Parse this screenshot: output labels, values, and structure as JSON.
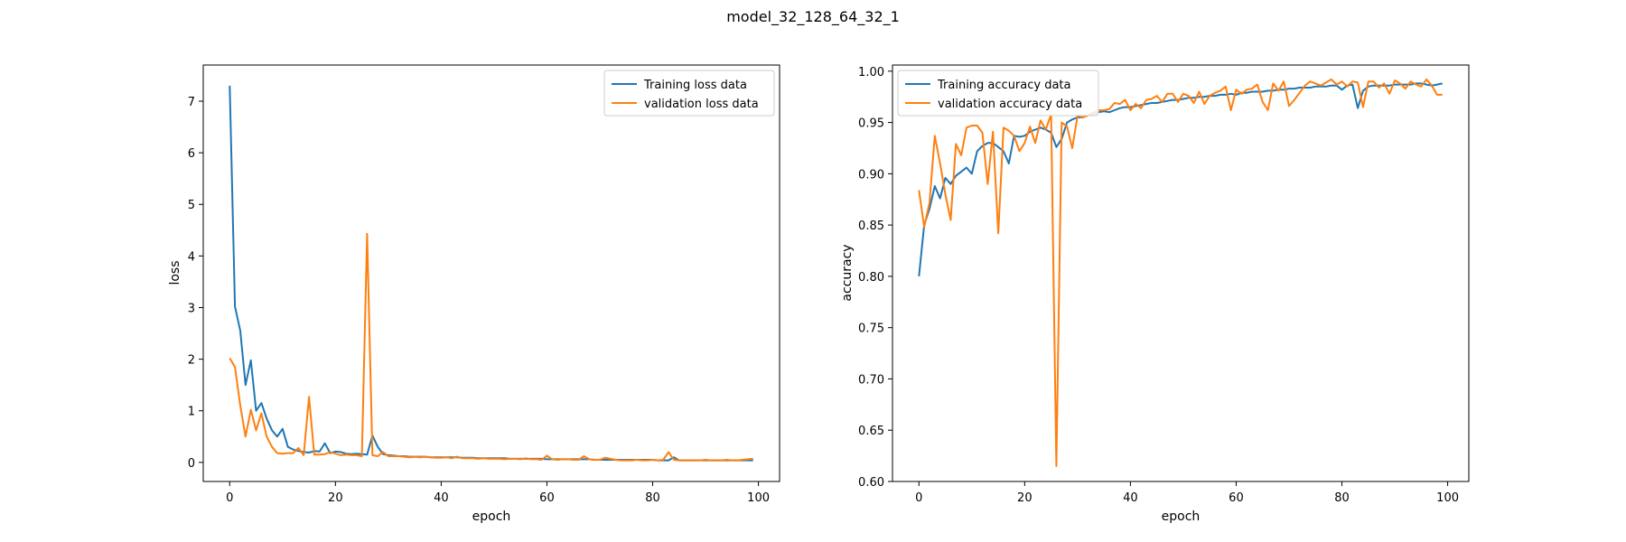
{
  "figure": {
    "title": "model_32_128_64_32_1"
  },
  "chart_data": [
    {
      "type": "line",
      "xlabel": "epoch",
      "ylabel": "loss",
      "xlim": [
        -5,
        104
      ],
      "ylim": [
        -0.37,
        7.7
      ],
      "xticks": [
        0,
        20,
        40,
        60,
        80,
        100
      ],
      "yticks": [
        0,
        1,
        2,
        3,
        4,
        5,
        6,
        7
      ],
      "tick_format": 0,
      "grid": false,
      "legend_position": "top-right",
      "series": [
        {
          "name": "Training loss data",
          "color": "#1f77b4",
          "x_start": 0,
          "values": [
            7.3,
            3.02,
            2.55,
            1.5,
            1.98,
            1.0,
            1.15,
            0.85,
            0.62,
            0.5,
            0.65,
            0.3,
            0.25,
            0.22,
            0.2,
            0.19,
            0.22,
            0.21,
            0.37,
            0.18,
            0.21,
            0.2,
            0.17,
            0.16,
            0.17,
            0.16,
            0.15,
            0.52,
            0.3,
            0.16,
            0.14,
            0.13,
            0.12,
            0.12,
            0.11,
            0.11,
            0.11,
            0.11,
            0.1,
            0.1,
            0.1,
            0.1,
            0.1,
            0.1,
            0.09,
            0.09,
            0.09,
            0.08,
            0.08,
            0.08,
            0.08,
            0.08,
            0.08,
            0.07,
            0.07,
            0.07,
            0.07,
            0.07,
            0.07,
            0.07,
            0.06,
            0.06,
            0.06,
            0.06,
            0.06,
            0.06,
            0.06,
            0.06,
            0.06,
            0.05,
            0.05,
            0.05,
            0.05,
            0.05,
            0.05,
            0.05,
            0.05,
            0.05,
            0.05,
            0.05,
            0.05,
            0.04,
            0.04,
            0.04,
            0.1,
            0.04,
            0.04,
            0.04,
            0.04,
            0.04,
            0.04,
            0.04,
            0.04,
            0.04,
            0.04,
            0.04,
            0.04,
            0.04,
            0.04,
            0.04
          ]
        },
        {
          "name": "validation loss data",
          "color": "#ff7f0e",
          "x_start": 0,
          "values": [
            2.02,
            1.85,
            1.1,
            0.5,
            1.02,
            0.62,
            0.95,
            0.5,
            0.3,
            0.18,
            0.17,
            0.18,
            0.18,
            0.28,
            0.14,
            1.27,
            0.15,
            0.15,
            0.16,
            0.2,
            0.17,
            0.14,
            0.15,
            0.14,
            0.14,
            0.12,
            4.43,
            0.14,
            0.12,
            0.2,
            0.12,
            0.12,
            0.12,
            0.11,
            0.1,
            0.11,
            0.1,
            0.11,
            0.1,
            0.09,
            0.09,
            0.1,
            0.08,
            0.11,
            0.08,
            0.08,
            0.08,
            0.07,
            0.08,
            0.07,
            0.07,
            0.07,
            0.06,
            0.07,
            0.07,
            0.06,
            0.08,
            0.06,
            0.06,
            0.05,
            0.13,
            0.06,
            0.05,
            0.06,
            0.06,
            0.05,
            0.05,
            0.12,
            0.06,
            0.05,
            0.05,
            0.09,
            0.07,
            0.05,
            0.04,
            0.04,
            0.04,
            0.05,
            0.04,
            0.04,
            0.05,
            0.04,
            0.05,
            0.2,
            0.05,
            0.04,
            0.04,
            0.04,
            0.04,
            0.04,
            0.05,
            0.04,
            0.04,
            0.04,
            0.05,
            0.04,
            0.04,
            0.05,
            0.06,
            0.07
          ]
        }
      ]
    },
    {
      "type": "line",
      "xlabel": "epoch",
      "ylabel": "accuracy",
      "xlim": [
        -5,
        104
      ],
      "ylim": [
        0.6,
        1.006
      ],
      "xticks": [
        0,
        20,
        40,
        60,
        80,
        100
      ],
      "yticks": [
        0.6,
        0.65,
        0.7,
        0.75,
        0.8,
        0.85,
        0.9,
        0.95,
        1.0
      ],
      "tick_format": 2,
      "grid": false,
      "legend_position": "top-left",
      "series": [
        {
          "name": "Training accuracy data",
          "color": "#1f77b4",
          "x_start": 0,
          "values": [
            0.8,
            0.85,
            0.866,
            0.888,
            0.876,
            0.896,
            0.89,
            0.898,
            0.902,
            0.906,
            0.9,
            0.922,
            0.927,
            0.93,
            0.93,
            0.926,
            0.922,
            0.91,
            0.937,
            0.936,
            0.937,
            0.941,
            0.943,
            0.945,
            0.943,
            0.94,
            0.926,
            0.934,
            0.95,
            0.953,
            0.955,
            0.955,
            0.957,
            0.958,
            0.96,
            0.961,
            0.96,
            0.962,
            0.964,
            0.965,
            0.965,
            0.966,
            0.967,
            0.968,
            0.969,
            0.969,
            0.97,
            0.971,
            0.972,
            0.972,
            0.973,
            0.974,
            0.974,
            0.975,
            0.975,
            0.976,
            0.976,
            0.977,
            0.977,
            0.978,
            0.977,
            0.979,
            0.979,
            0.98,
            0.98,
            0.98,
            0.981,
            0.981,
            0.982,
            0.982,
            0.983,
            0.983,
            0.984,
            0.984,
            0.984,
            0.985,
            0.985,
            0.985,
            0.986,
            0.986,
            0.982,
            0.986,
            0.987,
            0.964,
            0.981,
            0.985,
            0.986,
            0.986,
            0.986,
            0.986,
            0.987,
            0.987,
            0.987,
            0.987,
            0.988,
            0.988,
            0.987,
            0.986,
            0.987,
            0.988
          ]
        },
        {
          "name": "validation accuracy data",
          "color": "#ff7f0e",
          "x_start": 0,
          "values": [
            0.884,
            0.848,
            0.872,
            0.937,
            0.91,
            0.88,
            0.855,
            0.929,
            0.918,
            0.945,
            0.947,
            0.947,
            0.94,
            0.89,
            0.941,
            0.842,
            0.945,
            0.942,
            0.937,
            0.922,
            0.93,
            0.946,
            0.93,
            0.952,
            0.943,
            0.958,
            0.615,
            0.95,
            0.946,
            0.925,
            0.957,
            0.955,
            0.957,
            0.96,
            0.962,
            0.962,
            0.963,
            0.969,
            0.968,
            0.972,
            0.962,
            0.968,
            0.964,
            0.972,
            0.973,
            0.976,
            0.97,
            0.978,
            0.978,
            0.97,
            0.978,
            0.976,
            0.969,
            0.98,
            0.968,
            0.976,
            0.979,
            0.981,
            0.985,
            0.962,
            0.982,
            0.978,
            0.982,
            0.983,
            0.987,
            0.97,
            0.962,
            0.988,
            0.981,
            0.99,
            0.966,
            0.972,
            0.979,
            0.986,
            0.99,
            0.988,
            0.986,
            0.989,
            0.992,
            0.987,
            0.99,
            0.985,
            0.99,
            0.989,
            0.965,
            0.99,
            0.99,
            0.984,
            0.988,
            0.978,
            0.991,
            0.988,
            0.983,
            0.99,
            0.987,
            0.985,
            0.992,
            0.986,
            0.977,
            0.977
          ]
        }
      ]
    }
  ]
}
